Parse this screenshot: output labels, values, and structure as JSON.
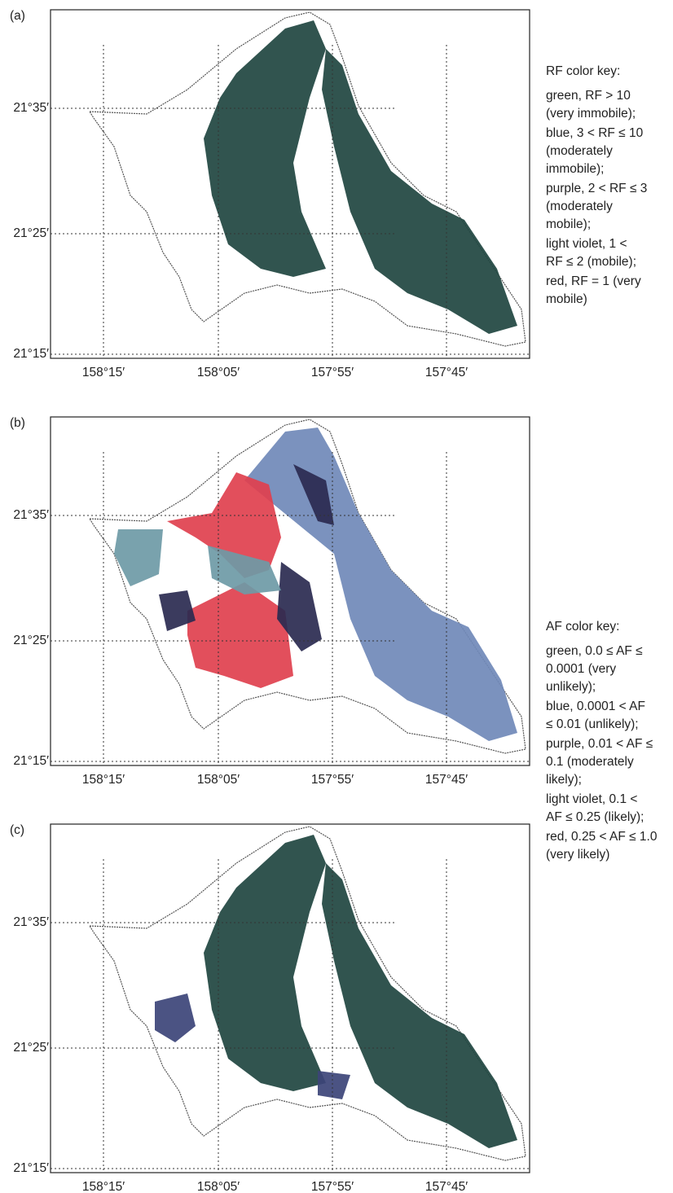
{
  "panels": [
    {
      "label": "(a)",
      "lat_labels": [
        "21°35′",
        "21°25′",
        "21°15′"
      ],
      "lon_labels": [
        "158°15′",
        "158°05′",
        "157°55′",
        "157°45′"
      ]
    },
    {
      "label": "(b)",
      "lat_labels": [
        "21°35′",
        "21°25′",
        "21°15′"
      ],
      "lon_labels": [
        "158°15′",
        "158°05′",
        "157°55′",
        "157°45′"
      ]
    },
    {
      "label": "(c)",
      "lat_labels": [
        "21°35′",
        "21°25′",
        "21°15′"
      ],
      "lon_labels": [
        "158°15′",
        "158°05′",
        "157°55′",
        "157°45′"
      ]
    }
  ],
  "legends": [
    {
      "title": "RF color key:",
      "items": [
        [
          "green, RF > 10",
          "(very immobile);"
        ],
        [
          "blue, 3 < RF ≤ 10",
          "(moderately",
          "immobile);"
        ],
        [
          "purple, 2 < RF ≤ 3",
          "(moderately",
          "mobile);"
        ],
        [
          "light violet, 1 <",
          "RF ≤ 2 (mobile);"
        ],
        [
          "red, RF = 1 (very",
          "mobile)"
        ]
      ]
    },
    {
      "title": "AF color key:",
      "items": [
        [
          "green, 0.0 ≤ AF ≤",
          "0.0001 (very",
          "unlikely);"
        ],
        [
          "blue, 0.0001 < AF",
          "≤ 0.01 (unlikely);"
        ],
        [
          "purple, 0.01 < AF ≤",
          "0.1 (moderately",
          "likely);"
        ],
        [
          "light violet, 0.1 <",
          "AF ≤ 0.25 (likely);"
        ],
        [
          "red, 0.25 < AF ≤ 1.0",
          "(very likely)"
        ]
      ]
    }
  ]
}
